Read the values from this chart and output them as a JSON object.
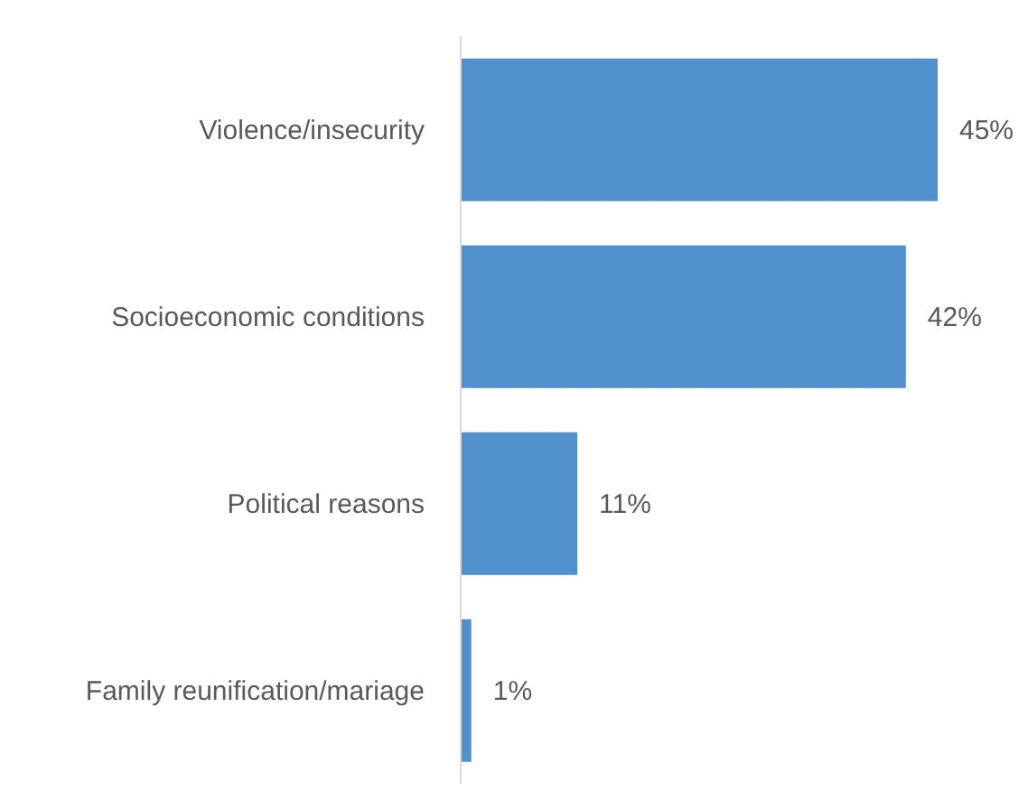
{
  "chart_data": {
    "type": "bar",
    "orientation": "horizontal",
    "categories": [
      "Violence/insecurity",
      "Socioeconomic conditions",
      "Political reasons",
      "Family reunification/mariage"
    ],
    "values": [
      45,
      42,
      11,
      1
    ],
    "color": "#4f90cd",
    "value_labels": [
      "45%",
      "42%",
      "11%",
      "1%"
    ]
  }
}
